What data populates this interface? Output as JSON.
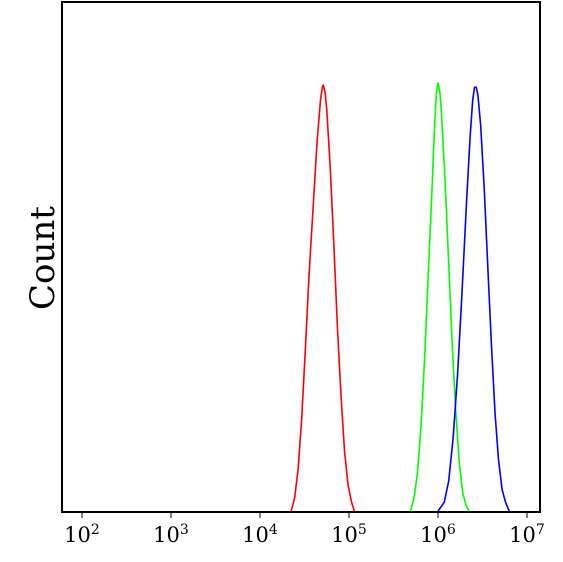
{
  "chart_data": {
    "type": "line",
    "title": "",
    "xlabel": "",
    "ylabel": "Count",
    "x_scale": "log",
    "xlim": [
      100,
      10000000
    ],
    "ylim": [
      0,
      1
    ],
    "grid": false,
    "legend": "none",
    "x_ticks": [
      {
        "value": 100,
        "base": "10",
        "exp": "2"
      },
      {
        "value": 1000,
        "base": "10",
        "exp": "3"
      },
      {
        "value": 10000,
        "base": "10",
        "exp": "4"
      },
      {
        "value": 100000,
        "base": "10",
        "exp": "5"
      },
      {
        "value": 1000000,
        "base": "10",
        "exp": "6"
      },
      {
        "value": 10000000,
        "base": "10",
        "exp": "7"
      }
    ],
    "series": [
      {
        "color": "#ff0000",
        "points": [
          [
            22400,
            0.0
          ],
          [
            24500,
            0.03
          ],
          [
            26900,
            0.1
          ],
          [
            29500,
            0.22
          ],
          [
            32400,
            0.38
          ],
          [
            35500,
            0.55
          ],
          [
            39800,
            0.72
          ],
          [
            43700,
            0.86
          ],
          [
            47900,
            0.96
          ],
          [
            50100,
            0.99
          ],
          [
            51300,
            0.995
          ],
          [
            53700,
            0.98
          ],
          [
            56200,
            0.94
          ],
          [
            61700,
            0.8
          ],
          [
            67600,
            0.62
          ],
          [
            74100,
            0.43
          ],
          [
            81300,
            0.27
          ],
          [
            89100,
            0.14
          ],
          [
            97700,
            0.06
          ],
          [
            107000,
            0.02
          ],
          [
            114800,
            0.0
          ]
        ]
      },
      {
        "color": "#00ff00",
        "points": [
          [
            490000,
            0.0
          ],
          [
            537000,
            0.03
          ],
          [
            589000,
            0.09
          ],
          [
            646000,
            0.2
          ],
          [
            708000,
            0.36
          ],
          [
            776000,
            0.55
          ],
          [
            851000,
            0.74
          ],
          [
            912000,
            0.89
          ],
          [
            955000,
            0.97
          ],
          [
            977000,
            0.99
          ],
          [
            1000000,
            1.0
          ],
          [
            1047000,
            0.98
          ],
          [
            1096000,
            0.93
          ],
          [
            1202000,
            0.77
          ],
          [
            1318000,
            0.58
          ],
          [
            1445000,
            0.39
          ],
          [
            1585000,
            0.23
          ],
          [
            1738000,
            0.11
          ],
          [
            1905000,
            0.04
          ],
          [
            2089000,
            0.01
          ],
          [
            2239000,
            0.0
          ]
        ]
      },
      {
        "color": "#0000ff",
        "points": [
          [
            1000000,
            0.0
          ],
          [
            1175000,
            0.02
          ],
          [
            1318000,
            0.07
          ],
          [
            1479000,
            0.17
          ],
          [
            1660000,
            0.32
          ],
          [
            1862000,
            0.51
          ],
          [
            2089000,
            0.72
          ],
          [
            2291000,
            0.87
          ],
          [
            2455000,
            0.96
          ],
          [
            2570000,
            0.99
          ],
          [
            2692000,
            0.99
          ],
          [
            2818000,
            0.97
          ],
          [
            3020000,
            0.9
          ],
          [
            3311000,
            0.75
          ],
          [
            3631000,
            0.57
          ],
          [
            3981000,
            0.39
          ],
          [
            4365000,
            0.23
          ],
          [
            4786000,
            0.12
          ],
          [
            5248000,
            0.05
          ],
          [
            5754000,
            0.02
          ],
          [
            6310000,
            0.0
          ]
        ]
      }
    ]
  }
}
